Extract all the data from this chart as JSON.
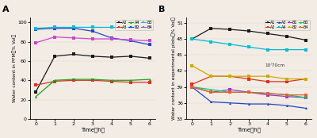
{
  "time": [
    0,
    1,
    2,
    3,
    4,
    5,
    6
  ],
  "panel_A": {
    "title": "A",
    "ylabel": "Water content in PFM（% Vol）",
    "xlabel": "Time（h）",
    "ylim": [
      0,
      105
    ],
    "yticks": [
      0,
      20,
      40,
      60,
      80,
      100
    ],
    "series": [
      {
        "name": "A2",
        "color": "#1a1a1a",
        "marker": "s",
        "values": [
          28,
          65,
          67,
          65,
          64,
          65,
          63
        ]
      },
      {
        "name": "A3",
        "color": "#e03020",
        "marker": "s",
        "values": [
          35,
          39,
          40,
          40,
          39,
          38,
          38
        ]
      },
      {
        "name": "A4",
        "color": "#20a020",
        "marker": "^",
        "values": [
          23,
          40,
          41,
          41,
          40,
          40,
          41
        ]
      },
      {
        "name": "B2",
        "color": "#2244cc",
        "marker": "s",
        "values": [
          93,
          94,
          94,
          91,
          84,
          81,
          77
        ]
      },
      {
        "name": "B3",
        "color": "#00bcd4",
        "marker": "s",
        "values": [
          94,
          95,
          95,
          95,
          95,
          95,
          95
        ]
      },
      {
        "name": "B4",
        "color": "#cc44cc",
        "marker": "s",
        "values": [
          79,
          85,
          84,
          83,
          83,
          82,
          81
        ]
      }
    ]
  },
  "panel_B": {
    "title": "B",
    "ylabel": "Water content in experimental plots（% Vol）",
    "xlabel": "Time（h）",
    "ylim": [
      33,
      52
    ],
    "yticks": [
      33,
      36,
      39,
      42,
      45,
      48,
      51
    ],
    "annotation": "10⁾70cm",
    "series": [
      {
        "name": "A1",
        "color": "#1a1a1a",
        "marker": "s",
        "values": [
          48.0,
          50.0,
          49.8,
          49.5,
          49.0,
          48.5,
          47.8
        ]
      },
      {
        "name": "A2",
        "color": "#e03020",
        "marker": "s",
        "values": [
          39.5,
          41.0,
          41.0,
          40.5,
          40.0,
          40.0,
          40.5
        ]
      },
      {
        "name": "A3",
        "color": "#2244cc",
        "marker": "^",
        "values": [
          39.0,
          36.2,
          36.0,
          35.8,
          35.8,
          35.5,
          35.0
        ]
      },
      {
        "name": "A4",
        "color": "#00bcd4",
        "marker": "s",
        "values": [
          48.0,
          47.5,
          47.0,
          46.5,
          46.0,
          46.0,
          46.0
        ]
      },
      {
        "name": "B1",
        "color": "#9933cc",
        "marker": "s",
        "values": [
          39.0,
          38.0,
          38.5,
          38.0,
          37.5,
          37.2,
          37.0
        ]
      },
      {
        "name": "B2",
        "color": "#ccaa00",
        "marker": "s",
        "values": [
          43.0,
          41.0,
          41.0,
          41.0,
          41.0,
          40.5,
          40.5
        ]
      },
      {
        "name": "B3",
        "color": "#00cc66",
        "marker": "^",
        "values": [
          39.0,
          38.5,
          38.0,
          38.0,
          37.8,
          37.5,
          37.0
        ]
      },
      {
        "name": "B4",
        "color": "#e06030",
        "marker": "s",
        "values": [
          39.0,
          38.0,
          38.0,
          38.0,
          37.8,
          37.5,
          37.5
        ]
      }
    ]
  },
  "bg_color": "#f2ece4",
  "axes_bg": "#f2ece4"
}
